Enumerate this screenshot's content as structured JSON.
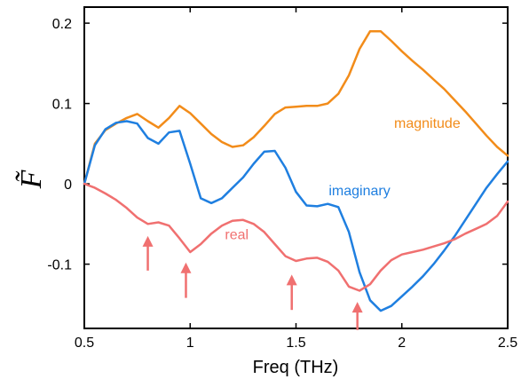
{
  "chart_data": {
    "type": "line",
    "title": "",
    "xlabel": "Freq (THz)",
    "ylabel": "F̃",
    "xlim": [
      0.5,
      2.5
    ],
    "ylim": [
      -0.18,
      0.22
    ],
    "xticks": [
      {
        "value": 0.5,
        "label": "0.5"
      },
      {
        "value": 1.0,
        "label": "1"
      },
      {
        "value": 1.5,
        "label": "1.5"
      },
      {
        "value": 2.0,
        "label": "2"
      },
      {
        "value": 2.5,
        "label": "2.5"
      }
    ],
    "yticks": [
      {
        "value": 0.2,
        "label": "0.2"
      },
      {
        "value": 0.1,
        "label": "0.1"
      },
      {
        "value": 0.0,
        "label": "0"
      },
      {
        "value": -0.1,
        "label": "-0.1"
      }
    ],
    "grid": false,
    "series": [
      {
        "name": "magnitude",
        "color": "#F28C1A",
        "points": [
          [
            0.5,
            0.0
          ],
          [
            0.55,
            0.05
          ],
          [
            0.6,
            0.067
          ],
          [
            0.65,
            0.075
          ],
          [
            0.7,
            0.082
          ],
          [
            0.75,
            0.087
          ],
          [
            0.8,
            0.078
          ],
          [
            0.85,
            0.07
          ],
          [
            0.9,
            0.082
          ],
          [
            0.95,
            0.097
          ],
          [
            1.0,
            0.088
          ],
          [
            1.05,
            0.075
          ],
          [
            1.1,
            0.062
          ],
          [
            1.15,
            0.052
          ],
          [
            1.2,
            0.046
          ],
          [
            1.25,
            0.048
          ],
          [
            1.3,
            0.058
          ],
          [
            1.35,
            0.072
          ],
          [
            1.4,
            0.087
          ],
          [
            1.45,
            0.095
          ],
          [
            1.5,
            0.096
          ],
          [
            1.55,
            0.097
          ],
          [
            1.6,
            0.097
          ],
          [
            1.65,
            0.1
          ],
          [
            1.7,
            0.112
          ],
          [
            1.75,
            0.135
          ],
          [
            1.8,
            0.168
          ],
          [
            1.85,
            0.19
          ],
          [
            1.9,
            0.19
          ],
          [
            1.95,
            0.178
          ],
          [
            2.0,
            0.165
          ],
          [
            2.05,
            0.153
          ],
          [
            2.1,
            0.142
          ],
          [
            2.15,
            0.13
          ],
          [
            2.2,
            0.118
          ],
          [
            2.25,
            0.104
          ],
          [
            2.3,
            0.09
          ],
          [
            2.35,
            0.075
          ],
          [
            2.4,
            0.06
          ],
          [
            2.45,
            0.046
          ],
          [
            2.5,
            0.035
          ]
        ]
      },
      {
        "name": "imaginary",
        "color": "#1F7FE0",
        "points": [
          [
            0.5,
            0.0
          ],
          [
            0.55,
            0.048
          ],
          [
            0.6,
            0.068
          ],
          [
            0.65,
            0.076
          ],
          [
            0.7,
            0.078
          ],
          [
            0.75,
            0.075
          ],
          [
            0.8,
            0.057
          ],
          [
            0.85,
            0.05
          ],
          [
            0.9,
            0.064
          ],
          [
            0.95,
            0.066
          ],
          [
            1.0,
            0.025
          ],
          [
            1.05,
            -0.018
          ],
          [
            1.1,
            -0.024
          ],
          [
            1.15,
            -0.018
          ],
          [
            1.2,
            -0.005
          ],
          [
            1.25,
            0.008
          ],
          [
            1.3,
            0.025
          ],
          [
            1.35,
            0.04
          ],
          [
            1.4,
            0.041
          ],
          [
            1.45,
            0.02
          ],
          [
            1.5,
            -0.01
          ],
          [
            1.55,
            -0.027
          ],
          [
            1.6,
            -0.028
          ],
          [
            1.65,
            -0.025
          ],
          [
            1.7,
            -0.029
          ],
          [
            1.75,
            -0.06
          ],
          [
            1.8,
            -0.11
          ],
          [
            1.85,
            -0.145
          ],
          [
            1.9,
            -0.158
          ],
          [
            1.95,
            -0.152
          ],
          [
            2.0,
            -0.14
          ],
          [
            2.05,
            -0.128
          ],
          [
            2.1,
            -0.115
          ],
          [
            2.15,
            -0.1
          ],
          [
            2.2,
            -0.083
          ],
          [
            2.25,
            -0.065
          ],
          [
            2.3,
            -0.045
          ],
          [
            2.35,
            -0.025
          ],
          [
            2.4,
            -0.005
          ],
          [
            2.45,
            0.012
          ],
          [
            2.5,
            0.028
          ]
        ]
      },
      {
        "name": "real",
        "color": "#F07070",
        "points": [
          [
            0.5,
            0.0
          ],
          [
            0.55,
            -0.005
          ],
          [
            0.6,
            -0.012
          ],
          [
            0.65,
            -0.02
          ],
          [
            0.7,
            -0.03
          ],
          [
            0.75,
            -0.042
          ],
          [
            0.8,
            -0.05
          ],
          [
            0.85,
            -0.048
          ],
          [
            0.9,
            -0.052
          ],
          [
            0.95,
            -0.068
          ],
          [
            1.0,
            -0.085
          ],
          [
            1.05,
            -0.075
          ],
          [
            1.1,
            -0.062
          ],
          [
            1.15,
            -0.052
          ],
          [
            1.2,
            -0.046
          ],
          [
            1.25,
            -0.045
          ],
          [
            1.3,
            -0.05
          ],
          [
            1.35,
            -0.06
          ],
          [
            1.4,
            -0.075
          ],
          [
            1.45,
            -0.09
          ],
          [
            1.5,
            -0.096
          ],
          [
            1.55,
            -0.093
          ],
          [
            1.6,
            -0.092
          ],
          [
            1.65,
            -0.097
          ],
          [
            1.7,
            -0.108
          ],
          [
            1.75,
            -0.128
          ],
          [
            1.8,
            -0.133
          ],
          [
            1.85,
            -0.125
          ],
          [
            1.9,
            -0.108
          ],
          [
            1.95,
            -0.095
          ],
          [
            2.0,
            -0.088
          ],
          [
            2.05,
            -0.085
          ],
          [
            2.1,
            -0.082
          ],
          [
            2.15,
            -0.078
          ],
          [
            2.2,
            -0.074
          ],
          [
            2.25,
            -0.069
          ],
          [
            2.3,
            -0.062
          ],
          [
            2.35,
            -0.056
          ],
          [
            2.4,
            -0.05
          ],
          [
            2.45,
            -0.04
          ],
          [
            2.5,
            -0.022
          ]
        ]
      }
    ],
    "series_labels": [
      {
        "series": "magnitude",
        "text": "magnitude",
        "x": 2.12,
        "y": 0.07
      },
      {
        "series": "imaginary",
        "text": "imaginary",
        "x": 1.8,
        "y": -0.014
      },
      {
        "series": "real",
        "text": "real",
        "x": 1.22,
        "y": -0.069
      }
    ],
    "annotations": [
      {
        "type": "arrow",
        "color": "#F07070",
        "x": 0.8,
        "y_tip": -0.065,
        "y_tail": -0.108
      },
      {
        "type": "arrow",
        "color": "#F07070",
        "x": 0.98,
        "y_tip": -0.098,
        "y_tail": -0.142
      },
      {
        "type": "arrow",
        "color": "#F07070",
        "x": 1.48,
        "y_tip": -0.113,
        "y_tail": -0.157
      },
      {
        "type": "arrow",
        "color": "#F07070",
        "x": 1.79,
        "y_tip": -0.147,
        "y_tail": -0.182
      }
    ]
  }
}
